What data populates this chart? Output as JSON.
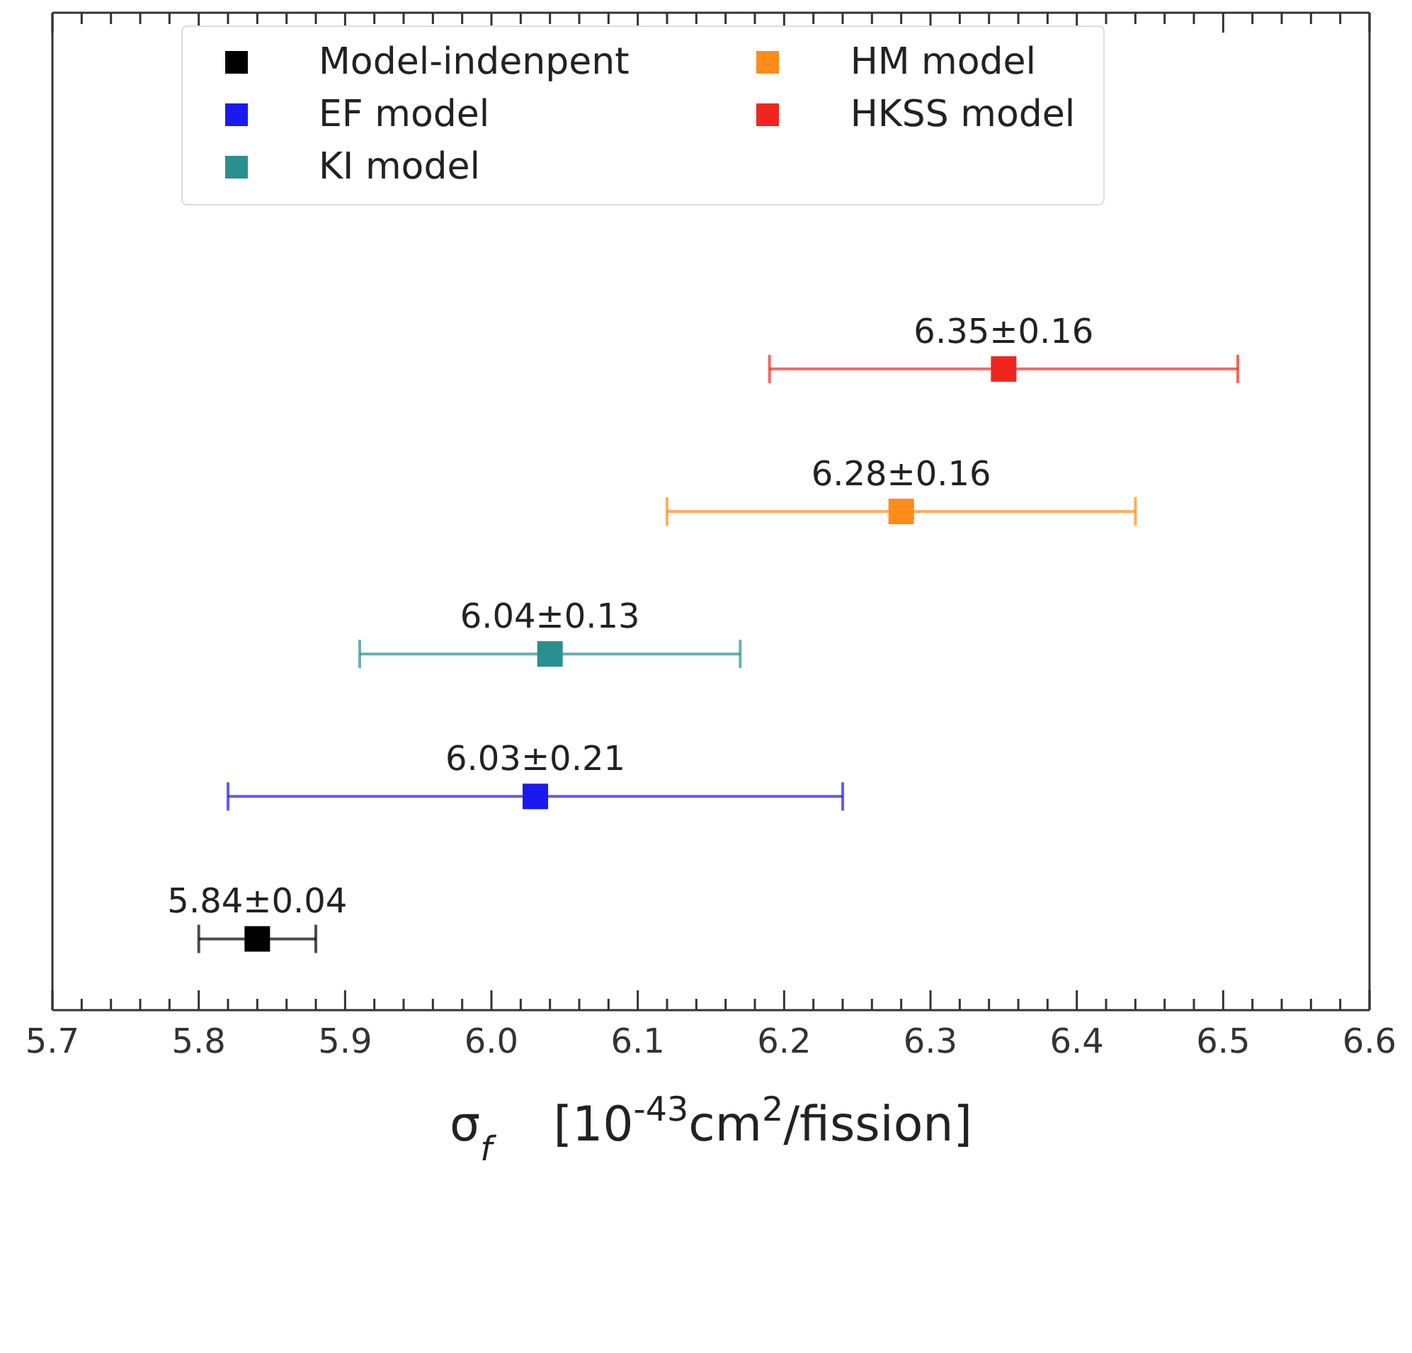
{
  "chart_data": {
    "type": "scatter",
    "orientation": "horizontal",
    "marker": "square",
    "legend": "top",
    "categories": [
      null,
      null,
      null,
      null,
      null,
      null,
      null
    ],
    "xlim": [
      5.7,
      6.6
    ],
    "xticks": [
      5.7,
      {
        "value": 5.72,
        "label": null
      },
      {
        "value": 5.74,
        "label": null
      },
      {
        "value": 5.76,
        "label": null
      },
      {
        "value": 5.78,
        "label": null
      },
      5.8,
      {
        "value": 5.82,
        "label": null
      },
      {
        "value": 5.84,
        "label": null
      },
      {
        "value": 5.86,
        "label": null
      },
      {
        "value": 5.88,
        "label": null
      },
      5.9,
      {
        "value": 5.92,
        "label": null
      },
      {
        "value": 5.94,
        "label": null
      },
      {
        "value": 5.96,
        "label": null
      },
      {
        "value": 5.98,
        "label": null
      },
      {
        "value": 6.0,
        "label": "6.0"
      },
      {
        "value": 6.02,
        "label": null
      },
      {
        "value": 6.04,
        "label": null
      },
      {
        "value": 6.06,
        "label": null
      },
      {
        "value": 6.08,
        "label": null
      },
      6.1,
      {
        "value": 6.12,
        "label": null
      },
      {
        "value": 6.14,
        "label": null
      },
      {
        "value": 6.16,
        "label": null
      },
      {
        "value": 6.18,
        "label": null
      },
      6.2,
      {
        "value": 6.22,
        "label": null
      },
      {
        "value": 6.24,
        "label": null
      },
      {
        "value": 6.26,
        "label": null
      },
      {
        "value": 6.28,
        "label": null
      },
      6.3,
      {
        "value": 6.32,
        "label": null
      },
      {
        "value": 6.34,
        "label": null
      },
      {
        "value": 6.36,
        "label": null
      },
      {
        "value": 6.38,
        "label": null
      },
      6.4,
      {
        "value": 6.42,
        "label": null
      },
      {
        "value": 6.44,
        "label": null
      },
      {
        "value": 6.46,
        "label": null
      },
      {
        "value": 6.48,
        "label": null
      },
      6.5,
      {
        "value": 6.52,
        "label": null
      },
      {
        "value": 6.54,
        "label": null
      },
      {
        "value": 6.56,
        "label": null
      },
      {
        "value": 6.58,
        "label": null
      },
      6.6
    ],
    "xlabel": "σ$_{f}$    [10$^{-43}$cm$^{2}$/fission]",
    "series": [
      {
        "name": "Model-indenpent",
        "color": "#000000",
        "values": [
          null,
          null,
          null,
          null,
          null,
          null,
          5.84
        ],
        "errors": [
          null,
          null,
          null,
          null,
          null,
          null,
          0.04
        ],
        "value_labels": [
          null,
          null,
          null,
          null,
          null,
          null,
          "5.84±0.04"
        ]
      },
      {
        "name": "EF model",
        "color": "#1a1af0",
        "values": [
          null,
          null,
          null,
          null,
          null,
          6.03,
          null
        ],
        "errors": [
          null,
          null,
          null,
          null,
          null,
          0.21,
          null
        ],
        "value_labels": [
          null,
          null,
          null,
          null,
          null,
          "6.03±0.21",
          null
        ]
      },
      {
        "name": "KI model",
        "color": "#2a8f8f",
        "values": [
          null,
          null,
          null,
          null,
          6.04,
          null,
          null
        ],
        "errors": [
          null,
          null,
          null,
          null,
          0.13,
          null,
          null
        ],
        "value_labels": [
          null,
          null,
          null,
          null,
          "6.04±0.13",
          null,
          null
        ]
      },
      {
        "name": "HM model",
        "color": "#ff8c1a",
        "values": [
          null,
          null,
          null,
          6.28,
          null,
          null,
          null
        ],
        "errors": [
          null,
          null,
          null,
          0.16,
          null,
          null,
          null
        ],
        "value_labels": [
          null,
          null,
          null,
          "6.28±0.16",
          null,
          null,
          null
        ]
      },
      {
        "name": "HKSS model",
        "color": "#f0261e",
        "values": [
          null,
          null,
          6.35,
          null,
          null,
          null,
          null
        ],
        "errors": [
          null,
          null,
          0.16,
          null,
          null,
          null,
          null
        ],
        "value_labels": [
          null,
          null,
          "6.35±0.16",
          null,
          null,
          null,
          null
        ]
      }
    ]
  }
}
